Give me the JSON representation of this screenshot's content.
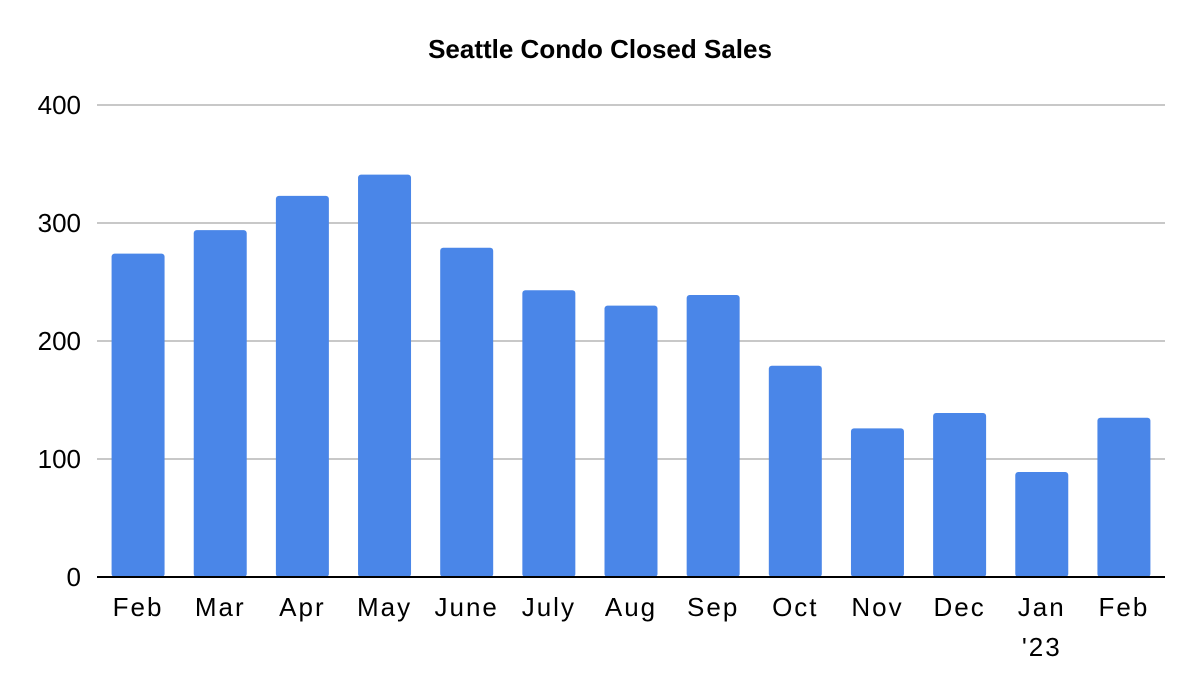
{
  "chart_data": {
    "type": "bar",
    "title": "Seattle Condo Closed Sales",
    "xlabel": "",
    "ylabel": "",
    "ylim": [
      0,
      400
    ],
    "yticks": [
      0,
      100,
      200,
      300,
      400
    ],
    "grid": true,
    "bar_color": "#4a86e8",
    "categories": [
      [
        "Feb"
      ],
      [
        "Mar"
      ],
      [
        "Apr"
      ],
      [
        "May"
      ],
      [
        "June"
      ],
      [
        "July"
      ],
      [
        "Aug"
      ],
      [
        "Sep"
      ],
      [
        "Oct"
      ],
      [
        "Nov"
      ],
      [
        "Dec"
      ],
      [
        "Jan",
        "'23"
      ],
      [
        "Feb"
      ]
    ],
    "values": [
      274,
      294,
      323,
      341,
      279,
      243,
      230,
      239,
      179,
      126,
      139,
      89,
      135
    ]
  }
}
